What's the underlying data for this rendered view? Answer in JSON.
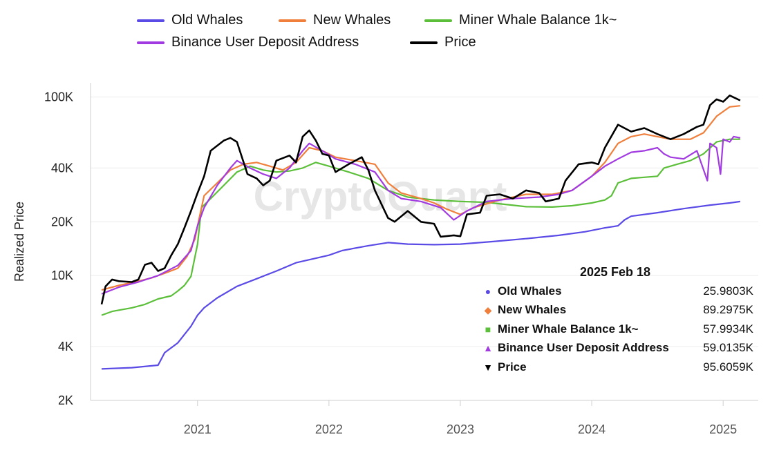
{
  "legend": [
    {
      "label": "Old Whales",
      "color": "#5b4be6"
    },
    {
      "label": "New Whales",
      "color": "#f07f3c"
    },
    {
      "label": "Miner Whale Balance 1k~",
      "color": "#5bbf3a"
    },
    {
      "label": "Binance User Deposit Address",
      "color": "#a13ae0"
    },
    {
      "label": "Price",
      "color": "#000000"
    }
  ],
  "watermark": "CryptoQuant",
  "tooltip": {
    "date": "2025 Feb 18",
    "rows": [
      {
        "name": "Old Whales",
        "value": "25.9803K",
        "marker": "●",
        "color": "#5b4be6"
      },
      {
        "name": "New Whales",
        "value": "89.2975K",
        "marker": "◆",
        "color": "#f07f3c"
      },
      {
        "name": "Miner Whale Balance 1k~",
        "value": "57.9934K",
        "marker": "■",
        "color": "#5bbf3a"
      },
      {
        "name": "Binance User Deposit Address",
        "value": "59.0135K",
        "marker": "▲",
        "color": "#a13ae0"
      },
      {
        "name": "Price",
        "value": "95.6059K",
        "marker": "▼",
        "color": "#000000"
      }
    ]
  },
  "chart_data": {
    "type": "line",
    "ylabel": "Realized Price",
    "xlabel": "",
    "yscale": "log",
    "ylim": [
      2000,
      120000
    ],
    "xlim": [
      2020.27,
      2025.22
    ],
    "y_ticks": [
      {
        "value": 2000,
        "label": "2K"
      },
      {
        "value": 4000,
        "label": "4K"
      },
      {
        "value": 10000,
        "label": "10K"
      },
      {
        "value": 20000,
        "label": "20K"
      },
      {
        "value": 40000,
        "label": "40K"
      },
      {
        "value": 100000,
        "label": "100K"
      }
    ],
    "x_ticks": [
      {
        "value": 2021,
        "label": "2021"
      },
      {
        "value": 2022,
        "label": "2022"
      },
      {
        "value": 2023,
        "label": "2023"
      },
      {
        "value": 2024,
        "label": "2024"
      },
      {
        "value": 2025,
        "label": "2025"
      }
    ],
    "grid": "horizontal",
    "legend_position": "top",
    "series": [
      {
        "name": "Old Whales",
        "color": "#5b4be6",
        "points": [
          [
            2020.27,
            3000
          ],
          [
            2020.5,
            3050
          ],
          [
            2020.7,
            3150
          ],
          [
            2020.75,
            3700
          ],
          [
            2020.85,
            4200
          ],
          [
            2020.95,
            5200
          ],
          [
            2021.0,
            6000
          ],
          [
            2021.05,
            6600
          ],
          [
            2021.15,
            7500
          ],
          [
            2021.3,
            8700
          ],
          [
            2021.45,
            9600
          ],
          [
            2021.6,
            10600
          ],
          [
            2021.75,
            11800
          ],
          [
            2021.9,
            12500
          ],
          [
            2022.0,
            13000
          ],
          [
            2022.1,
            13800
          ],
          [
            2022.3,
            14700
          ],
          [
            2022.45,
            15300
          ],
          [
            2022.6,
            15000
          ],
          [
            2022.8,
            14900
          ],
          [
            2023.0,
            15000
          ],
          [
            2023.25,
            15500
          ],
          [
            2023.5,
            16100
          ],
          [
            2023.75,
            16800
          ],
          [
            2023.95,
            17600
          ],
          [
            2024.1,
            18500
          ],
          [
            2024.2,
            19000
          ],
          [
            2024.25,
            20500
          ],
          [
            2024.3,
            21500
          ],
          [
            2024.5,
            22500
          ],
          [
            2024.7,
            23700
          ],
          [
            2024.9,
            24800
          ],
          [
            2025.05,
            25500
          ],
          [
            2025.13,
            25980
          ]
        ]
      },
      {
        "name": "Miner Whale Balance 1k~",
        "color": "#5bbf3a",
        "points": [
          [
            2020.27,
            6000
          ],
          [
            2020.35,
            6300
          ],
          [
            2020.5,
            6600
          ],
          [
            2020.6,
            6900
          ],
          [
            2020.7,
            7400
          ],
          [
            2020.8,
            7700
          ],
          [
            2020.85,
            8200
          ],
          [
            2020.9,
            8800
          ],
          [
            2020.95,
            9900
          ],
          [
            2021.0,
            15000
          ],
          [
            2021.03,
            24000
          ],
          [
            2021.1,
            27000
          ],
          [
            2021.2,
            32000
          ],
          [
            2021.3,
            38000
          ],
          [
            2021.4,
            41000
          ],
          [
            2021.5,
            39000
          ],
          [
            2021.6,
            38000
          ],
          [
            2021.7,
            38500
          ],
          [
            2021.8,
            40000
          ],
          [
            2021.9,
            43000
          ],
          [
            2022.0,
            41000
          ],
          [
            2022.15,
            38000
          ],
          [
            2022.3,
            35000
          ],
          [
            2022.45,
            30000
          ],
          [
            2022.6,
            27500
          ],
          [
            2022.8,
            26500
          ],
          [
            2023.0,
            26000
          ],
          [
            2023.2,
            25700
          ],
          [
            2023.5,
            24300
          ],
          [
            2023.7,
            24200
          ],
          [
            2023.85,
            24600
          ],
          [
            2024.0,
            25500
          ],
          [
            2024.1,
            26500
          ],
          [
            2024.15,
            28000
          ],
          [
            2024.2,
            33000
          ],
          [
            2024.3,
            35000
          ],
          [
            2024.4,
            35500
          ],
          [
            2024.5,
            36000
          ],
          [
            2024.55,
            40000
          ],
          [
            2024.65,
            42000
          ],
          [
            2024.75,
            44000
          ],
          [
            2024.85,
            48000
          ],
          [
            2024.95,
            56000
          ],
          [
            2025.05,
            58000
          ],
          [
            2025.13,
            57990
          ]
        ]
      },
      {
        "name": "New Whales",
        "color": "#f07f3c",
        "points": [
          [
            2020.27,
            8300
          ],
          [
            2020.4,
            8800
          ],
          [
            2020.55,
            9300
          ],
          [
            2020.65,
            9700
          ],
          [
            2020.75,
            10300
          ],
          [
            2020.85,
            11000
          ],
          [
            2020.92,
            12800
          ],
          [
            2020.98,
            16000
          ],
          [
            2021.0,
            19000
          ],
          [
            2021.05,
            28000
          ],
          [
            2021.15,
            33000
          ],
          [
            2021.25,
            39000
          ],
          [
            2021.35,
            42000
          ],
          [
            2021.45,
            43000
          ],
          [
            2021.55,
            41000
          ],
          [
            2021.65,
            39000
          ],
          [
            2021.75,
            43000
          ],
          [
            2021.85,
            52000
          ],
          [
            2021.95,
            50000
          ],
          [
            2022.05,
            46000
          ],
          [
            2022.2,
            44000
          ],
          [
            2022.35,
            42000
          ],
          [
            2022.45,
            33000
          ],
          [
            2022.55,
            29000
          ],
          [
            2022.7,
            27000
          ],
          [
            2022.8,
            25500
          ],
          [
            2022.9,
            23500
          ],
          [
            2023.0,
            22000
          ],
          [
            2023.1,
            24000
          ],
          [
            2023.3,
            26500
          ],
          [
            2023.5,
            28500
          ],
          [
            2023.7,
            28500
          ],
          [
            2023.85,
            30000
          ],
          [
            2024.0,
            36000
          ],
          [
            2024.1,
            43000
          ],
          [
            2024.2,
            55000
          ],
          [
            2024.3,
            60000
          ],
          [
            2024.4,
            62000
          ],
          [
            2024.5,
            60000
          ],
          [
            2024.6,
            58000
          ],
          [
            2024.75,
            58000
          ],
          [
            2024.85,
            63000
          ],
          [
            2024.95,
            78000
          ],
          [
            2025.05,
            88000
          ],
          [
            2025.13,
            89300
          ]
        ]
      },
      {
        "name": "Binance User Deposit Address",
        "color": "#a13ae0",
        "points": [
          [
            2020.27,
            7900
          ],
          [
            2020.4,
            8600
          ],
          [
            2020.55,
            9200
          ],
          [
            2020.7,
            10000
          ],
          [
            2020.85,
            11400
          ],
          [
            2020.95,
            13800
          ],
          [
            2021.0,
            19000
          ],
          [
            2021.05,
            24000
          ],
          [
            2021.15,
            32000
          ],
          [
            2021.25,
            40000
          ],
          [
            2021.3,
            44000
          ],
          [
            2021.4,
            40000
          ],
          [
            2021.5,
            37000
          ],
          [
            2021.6,
            35000
          ],
          [
            2021.7,
            40000
          ],
          [
            2021.8,
            50000
          ],
          [
            2021.85,
            55000
          ],
          [
            2021.95,
            50000
          ],
          [
            2022.05,
            45000
          ],
          [
            2022.2,
            42000
          ],
          [
            2022.35,
            38000
          ],
          [
            2022.45,
            30000
          ],
          [
            2022.55,
            27000
          ],
          [
            2022.7,
            26000
          ],
          [
            2022.85,
            24000
          ],
          [
            2022.95,
            20500
          ],
          [
            2023.05,
            23000
          ],
          [
            2023.2,
            26000
          ],
          [
            2023.4,
            27000
          ],
          [
            2023.6,
            27500
          ],
          [
            2023.75,
            28500
          ],
          [
            2023.85,
            30000
          ],
          [
            2024.0,
            36000
          ],
          [
            2024.1,
            41000
          ],
          [
            2024.2,
            45000
          ],
          [
            2024.3,
            49000
          ],
          [
            2024.4,
            50000
          ],
          [
            2024.5,
            52000
          ],
          [
            2024.55,
            48000
          ],
          [
            2024.6,
            46000
          ],
          [
            2024.7,
            45000
          ],
          [
            2024.8,
            50000
          ],
          [
            2024.88,
            34000
          ],
          [
            2024.9,
            55000
          ],
          [
            2024.95,
            52000
          ],
          [
            2024.98,
            37000
          ],
          [
            2025.0,
            58000
          ],
          [
            2025.05,
            56000
          ],
          [
            2025.08,
            60000
          ],
          [
            2025.13,
            59010
          ]
        ]
      },
      {
        "name": "Price",
        "color": "#000000",
        "points": [
          [
            2020.27,
            6900
          ],
          [
            2020.3,
            8700
          ],
          [
            2020.35,
            9500
          ],
          [
            2020.4,
            9300
          ],
          [
            2020.5,
            9200
          ],
          [
            2020.55,
            9500
          ],
          [
            2020.6,
            11500
          ],
          [
            2020.65,
            11800
          ],
          [
            2020.7,
            10600
          ],
          [
            2020.75,
            11000
          ],
          [
            2020.8,
            13000
          ],
          [
            2020.85,
            15000
          ],
          [
            2020.9,
            18500
          ],
          [
            2020.95,
            23000
          ],
          [
            2021.0,
            29000
          ],
          [
            2021.05,
            36000
          ],
          [
            2021.1,
            50000
          ],
          [
            2021.2,
            57000
          ],
          [
            2021.25,
            59000
          ],
          [
            2021.3,
            56000
          ],
          [
            2021.38,
            37000
          ],
          [
            2021.45,
            35000
          ],
          [
            2021.5,
            32000
          ],
          [
            2021.55,
            34000
          ],
          [
            2021.6,
            44000
          ],
          [
            2021.7,
            47000
          ],
          [
            2021.75,
            43000
          ],
          [
            2021.8,
            60000
          ],
          [
            2021.85,
            65000
          ],
          [
            2021.9,
            57000
          ],
          [
            2021.95,
            48000
          ],
          [
            2022.0,
            47000
          ],
          [
            2022.05,
            38000
          ],
          [
            2022.15,
            42000
          ],
          [
            2022.25,
            46000
          ],
          [
            2022.3,
            39000
          ],
          [
            2022.35,
            30000
          ],
          [
            2022.45,
            21000
          ],
          [
            2022.5,
            20000
          ],
          [
            2022.6,
            23000
          ],
          [
            2022.7,
            20000
          ],
          [
            2022.8,
            19500
          ],
          [
            2022.85,
            16500
          ],
          [
            2022.95,
            16800
          ],
          [
            2023.0,
            16600
          ],
          [
            2023.05,
            22000
          ],
          [
            2023.15,
            22500
          ],
          [
            2023.2,
            28000
          ],
          [
            2023.3,
            28500
          ],
          [
            2023.4,
            27000
          ],
          [
            2023.5,
            30000
          ],
          [
            2023.6,
            29000
          ],
          [
            2023.65,
            26000
          ],
          [
            2023.75,
            27000
          ],
          [
            2023.8,
            34000
          ],
          [
            2023.9,
            42000
          ],
          [
            2024.0,
            43000
          ],
          [
            2024.05,
            42000
          ],
          [
            2024.1,
            52000
          ],
          [
            2024.2,
            70000
          ],
          [
            2024.3,
            64000
          ],
          [
            2024.4,
            67000
          ],
          [
            2024.5,
            62000
          ],
          [
            2024.6,
            58000
          ],
          [
            2024.7,
            62000
          ],
          [
            2024.8,
            68000
          ],
          [
            2024.85,
            70000
          ],
          [
            2024.9,
            90000
          ],
          [
            2024.95,
            97000
          ],
          [
            2025.0,
            94000
          ],
          [
            2025.05,
            102000
          ],
          [
            2025.1,
            98000
          ],
          [
            2025.13,
            95606
          ]
        ]
      }
    ]
  }
}
